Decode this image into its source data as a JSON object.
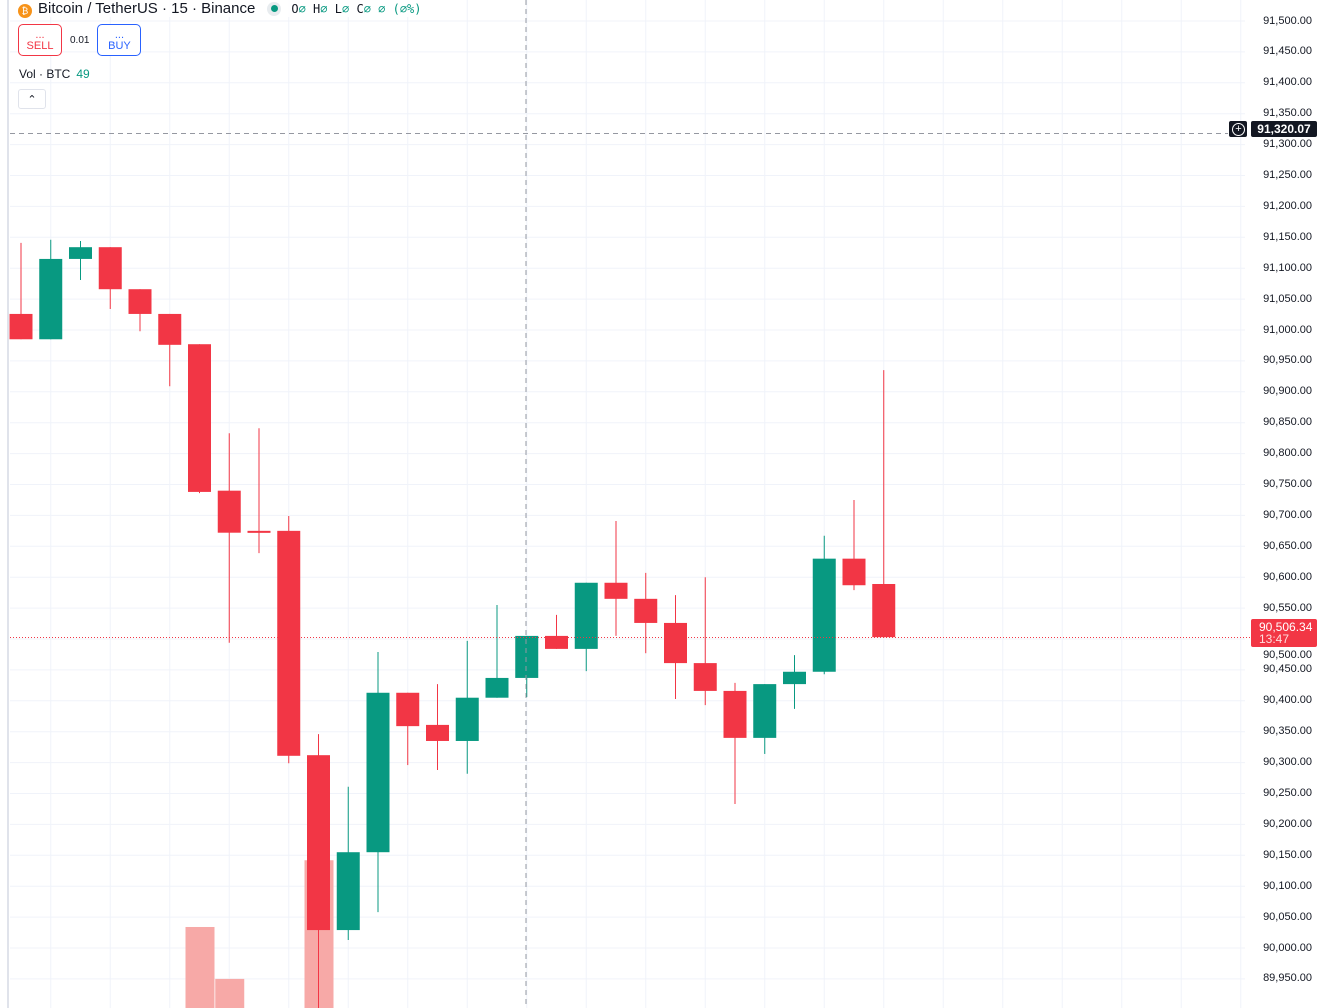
{
  "header": {
    "symbol": "Bitcoin / TetherUS · 15 · Binance",
    "ohlc": {
      "o_label": "O",
      "o": "∅",
      "h_label": "H",
      "h": "∅",
      "l_label": "L",
      "l": "∅",
      "c_label": "C",
      "c": "∅",
      "change": "∅ (∅%)"
    }
  },
  "trade": {
    "sell_price": "...",
    "sell_label": "SELL",
    "quantity": "0.01",
    "buy_price": "...",
    "buy_label": "BUY"
  },
  "volume_legend": {
    "label": "Vol · BTC",
    "value": "49"
  },
  "collapse_icon": "chevron-up-icon",
  "price_axis": {
    "ticks": [
      "91,500.00",
      "91,450.00",
      "91,400.00",
      "91,350.00",
      "91,300.00",
      "91,250.00",
      "91,200.00",
      "91,150.00",
      "91,100.00",
      "91,050.00",
      "91,000.00",
      "90,950.00",
      "90,900.00",
      "90,850.00",
      "90,800.00",
      "90,750.00",
      "90,700.00",
      "90,650.00",
      "90,600.00",
      "90,550.00",
      "90,500.00",
      "90,450.00",
      "90,400.00",
      "90,350.00",
      "90,300.00",
      "90,250.00",
      "90,200.00",
      "90,150.00",
      "90,100.00",
      "90,050.00",
      "90,000.00",
      "89,950.00"
    ]
  },
  "crosshair": {
    "price": "91,320.07"
  },
  "last_price": {
    "price": "90,506.34",
    "countdown": "13:47"
  },
  "colors": {
    "up": "#089981",
    "down": "#f23645",
    "volume_down": "#f7a9a7",
    "grid": "#f0f3fa"
  },
  "chart_data": {
    "type": "candlestick",
    "ylim": [
      89950,
      91500
    ],
    "candles": [
      [
        91026,
        91141,
        90985,
        90985
      ],
      [
        90985,
        91146,
        90985,
        91115
      ],
      [
        91115,
        91144,
        91081,
        91134
      ],
      [
        91134,
        91134,
        91034,
        91066
      ],
      [
        91066,
        91066,
        90998,
        91026
      ],
      [
        91026,
        91026,
        90909,
        90976
      ],
      [
        90977,
        90977,
        90736,
        90738
      ],
      [
        90740,
        90833,
        90494,
        90672
      ],
      [
        90675,
        90841,
        90639,
        90673
      ],
      [
        90675,
        90699,
        90299,
        90311
      ],
      [
        90312,
        90346,
        89900,
        90029
      ],
      [
        90029,
        90261,
        90013,
        90155
      ],
      [
        90155,
        90479,
        90058,
        90413
      ],
      [
        90413,
        90413,
        90296,
        90359
      ],
      [
        90361,
        90427,
        90288,
        90335
      ],
      [
        90335,
        90497,
        90282,
        90405
      ],
      [
        90405,
        90555,
        90405,
        90437
      ],
      [
        90437,
        90505,
        90406,
        90505
      ],
      [
        90505,
        90539,
        90484,
        90484
      ],
      [
        90484,
        90591,
        90448,
        90591
      ],
      [
        90591,
        90691,
        90505,
        90565
      ],
      [
        90565,
        90607,
        90477,
        90526
      ],
      [
        90526,
        90571,
        90403,
        90461
      ],
      [
        90461,
        90600,
        90393,
        90416
      ],
      [
        90416,
        90429,
        90233,
        90340
      ],
      [
        90340,
        90427,
        90314,
        90427
      ],
      [
        90427,
        90474,
        90387,
        90447
      ],
      [
        90447,
        90667,
        90443,
        90630
      ],
      [
        90630,
        90725,
        90579,
        90587
      ],
      [
        90589,
        90935,
        90502,
        90503
      ]
    ],
    "candle_fields": [
      "open",
      "high",
      "low",
      "close"
    ],
    "visible_volume_tops_price_scale": {
      "6": 90034,
      "7": 89950,
      "10": 90142
    }
  }
}
